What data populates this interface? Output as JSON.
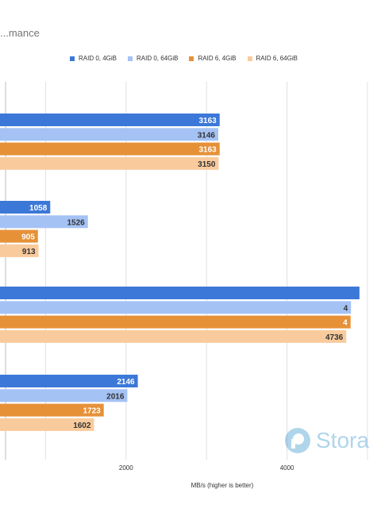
{
  "colors": {
    "raid0_4": "#3c78d8",
    "raid0_64": "#a4c2f4",
    "raid6_4": "#e69138",
    "raid6_64": "#f9cb9c",
    "grid": "#e0e0e0",
    "watermark": "#1e88c8"
  },
  "watermark": {
    "text": "Stora",
    "icon": "storage-logo-icon"
  },
  "chart_data": {
    "type": "bar",
    "orientation": "horizontal",
    "title": "...mance",
    "xlabel": "MB/s (higher is better)",
    "xlim": [
      0,
      6000
    ],
    "xticks": [
      {
        "value": 2000,
        "label": "2000"
      },
      {
        "value": 4000,
        "label": "4000"
      }
    ],
    "grid": true,
    "legend_position": "top",
    "categories": [
      "",
      "",
      "",
      ""
    ],
    "series": [
      {
        "name": "RAID 0, 4GiB",
        "color": "#3c78d8",
        "values": [
          3163,
          1058,
          4900,
          2146
        ],
        "labels": [
          "3163",
          "1058",
          "",
          "2146"
        ]
      },
      {
        "name": "RAID 0, 64GiB",
        "color": "#a4c2f4",
        "values": [
          3146,
          1526,
          4795,
          2016
        ],
        "labels": [
          "3146",
          "1526",
          "4",
          "2016"
        ]
      },
      {
        "name": "RAID 6, 4GiB",
        "color": "#e69138",
        "values": [
          3163,
          905,
          4790,
          1723
        ],
        "labels": [
          "3163",
          "905",
          "4",
          "1723"
        ]
      },
      {
        "name": "RAID 6, 64GiB",
        "color": "#f9cb9c",
        "values": [
          3150,
          913,
          4736,
          1602
        ],
        "labels": [
          "3150",
          "913",
          "4736",
          "1602"
        ]
      }
    ]
  }
}
